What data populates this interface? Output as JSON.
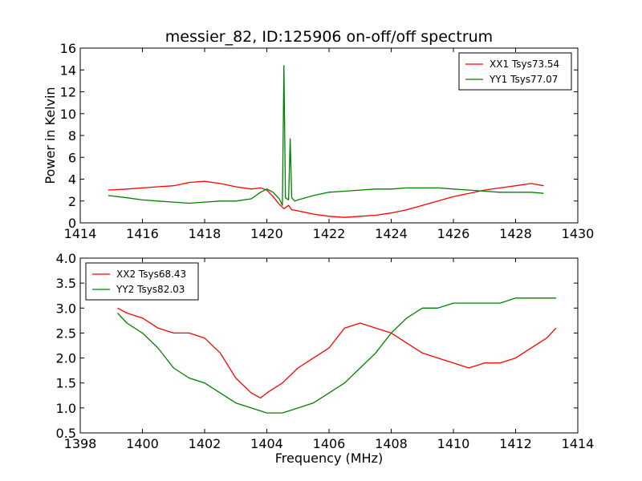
{
  "chart_data": [
    {
      "type": "line",
      "title": "messier_82, ID:125906 on-off/off spectrum",
      "xlabel": "",
      "ylabel": "Power in Kelvin",
      "xlim": [
        1414,
        1430
      ],
      "ylim": [
        0,
        16
      ],
      "xticks": [
        1414,
        1416,
        1418,
        1420,
        1422,
        1424,
        1426,
        1428,
        1430
      ],
      "yticks": [
        0,
        2,
        4,
        6,
        8,
        10,
        12,
        14,
        16
      ],
      "grid": false,
      "legend_placement": "top-right",
      "series": [
        {
          "name": "XX1 Tsys73.54",
          "color": "#ff0000",
          "x": [
            1414.9,
            1415.5,
            1416.0,
            1416.5,
            1417.0,
            1417.5,
            1418.0,
            1418.5,
            1419.0,
            1419.5,
            1419.8,
            1420.0,
            1420.2,
            1420.4,
            1420.55,
            1420.7,
            1420.8,
            1421.0,
            1421.5,
            1422.0,
            1422.5,
            1423.0,
            1423.5,
            1424.0,
            1424.5,
            1425.0,
            1425.5,
            1426.0,
            1426.5,
            1427.0,
            1427.5,
            1428.0,
            1428.5,
            1428.9
          ],
          "y": [
            3.0,
            3.1,
            3.2,
            3.3,
            3.4,
            3.7,
            3.8,
            3.6,
            3.3,
            3.1,
            3.2,
            3.0,
            2.4,
            1.7,
            1.3,
            1.6,
            1.2,
            1.1,
            0.8,
            0.6,
            0.5,
            0.6,
            0.7,
            0.9,
            1.2,
            1.6,
            2.0,
            2.4,
            2.7,
            3.0,
            3.2,
            3.4,
            3.6,
            3.4
          ]
        },
        {
          "name": "YY1 Tsys77.07",
          "color": "#008000",
          "x": [
            1414.9,
            1415.5,
            1416.0,
            1416.5,
            1417.0,
            1417.5,
            1418.0,
            1418.5,
            1419.0,
            1419.5,
            1419.8,
            1420.0,
            1420.2,
            1420.4,
            1420.5,
            1420.55,
            1420.6,
            1420.7,
            1420.75,
            1420.8,
            1420.9,
            1421.0,
            1421.5,
            1422.0,
            1422.5,
            1423.0,
            1423.5,
            1424.0,
            1424.5,
            1425.0,
            1425.5,
            1426.0,
            1426.5,
            1427.0,
            1427.5,
            1428.0,
            1428.5,
            1428.9
          ],
          "y": [
            2.5,
            2.3,
            2.1,
            2.0,
            1.9,
            1.8,
            1.9,
            2.0,
            2.0,
            2.2,
            2.8,
            3.1,
            2.8,
            2.2,
            1.6,
            14.4,
            2.3,
            2.1,
            7.7,
            2.3,
            2.0,
            2.1,
            2.5,
            2.8,
            2.9,
            3.0,
            3.1,
            3.1,
            3.2,
            3.2,
            3.2,
            3.1,
            3.0,
            2.9,
            2.8,
            2.8,
            2.8,
            2.7
          ]
        }
      ]
    },
    {
      "type": "line",
      "title": "",
      "xlabel": "Frequency (MHz)",
      "ylabel": "",
      "xlim": [
        1398,
        1414
      ],
      "ylim": [
        0.5,
        4.0
      ],
      "xticks": [
        1398,
        1400,
        1402,
        1404,
        1406,
        1408,
        1410,
        1412,
        1414
      ],
      "yticks": [
        "0.5",
        "1.0",
        "1.5",
        "2.0",
        "2.5",
        "3.0",
        "3.5",
        "4.0"
      ],
      "grid": false,
      "legend_placement": "top-left",
      "series": [
        {
          "name": "XX2 Tsys68.43",
          "color": "#ff0000",
          "x": [
            1399.2,
            1399.5,
            1400.0,
            1400.5,
            1401.0,
            1401.5,
            1402.0,
            1402.5,
            1403.0,
            1403.5,
            1403.8,
            1404.0,
            1404.5,
            1405.0,
            1405.5,
            1406.0,
            1406.5,
            1407.0,
            1407.5,
            1408.0,
            1408.5,
            1409.0,
            1409.5,
            1410.0,
            1410.5,
            1411.0,
            1411.5,
            1412.0,
            1412.5,
            1413.0,
            1413.3
          ],
          "y": [
            3.0,
            2.9,
            2.8,
            2.6,
            2.5,
            2.5,
            2.4,
            2.1,
            1.6,
            1.3,
            1.2,
            1.3,
            1.5,
            1.8,
            2.0,
            2.2,
            2.6,
            2.7,
            2.6,
            2.5,
            2.3,
            2.1,
            2.0,
            1.9,
            1.8,
            1.9,
            1.9,
            2.0,
            2.2,
            2.4,
            2.6
          ]
        },
        {
          "name": "YY2 Tsys82.03",
          "color": "#008000",
          "x": [
            1399.2,
            1399.5,
            1400.0,
            1400.5,
            1401.0,
            1401.5,
            1402.0,
            1402.5,
            1403.0,
            1403.5,
            1404.0,
            1404.5,
            1405.0,
            1405.5,
            1406.0,
            1406.5,
            1407.0,
            1407.5,
            1408.0,
            1408.5,
            1409.0,
            1409.5,
            1410.0,
            1410.5,
            1411.0,
            1411.5,
            1412.0,
            1412.5,
            1413.0,
            1413.3
          ],
          "y": [
            2.9,
            2.7,
            2.5,
            2.2,
            1.8,
            1.6,
            1.5,
            1.3,
            1.1,
            1.0,
            0.9,
            0.9,
            1.0,
            1.1,
            1.3,
            1.5,
            1.8,
            2.1,
            2.5,
            2.8,
            3.0,
            3.0,
            3.1,
            3.1,
            3.1,
            3.1,
            3.2,
            3.2,
            3.2,
            3.2
          ]
        }
      ]
    }
  ]
}
